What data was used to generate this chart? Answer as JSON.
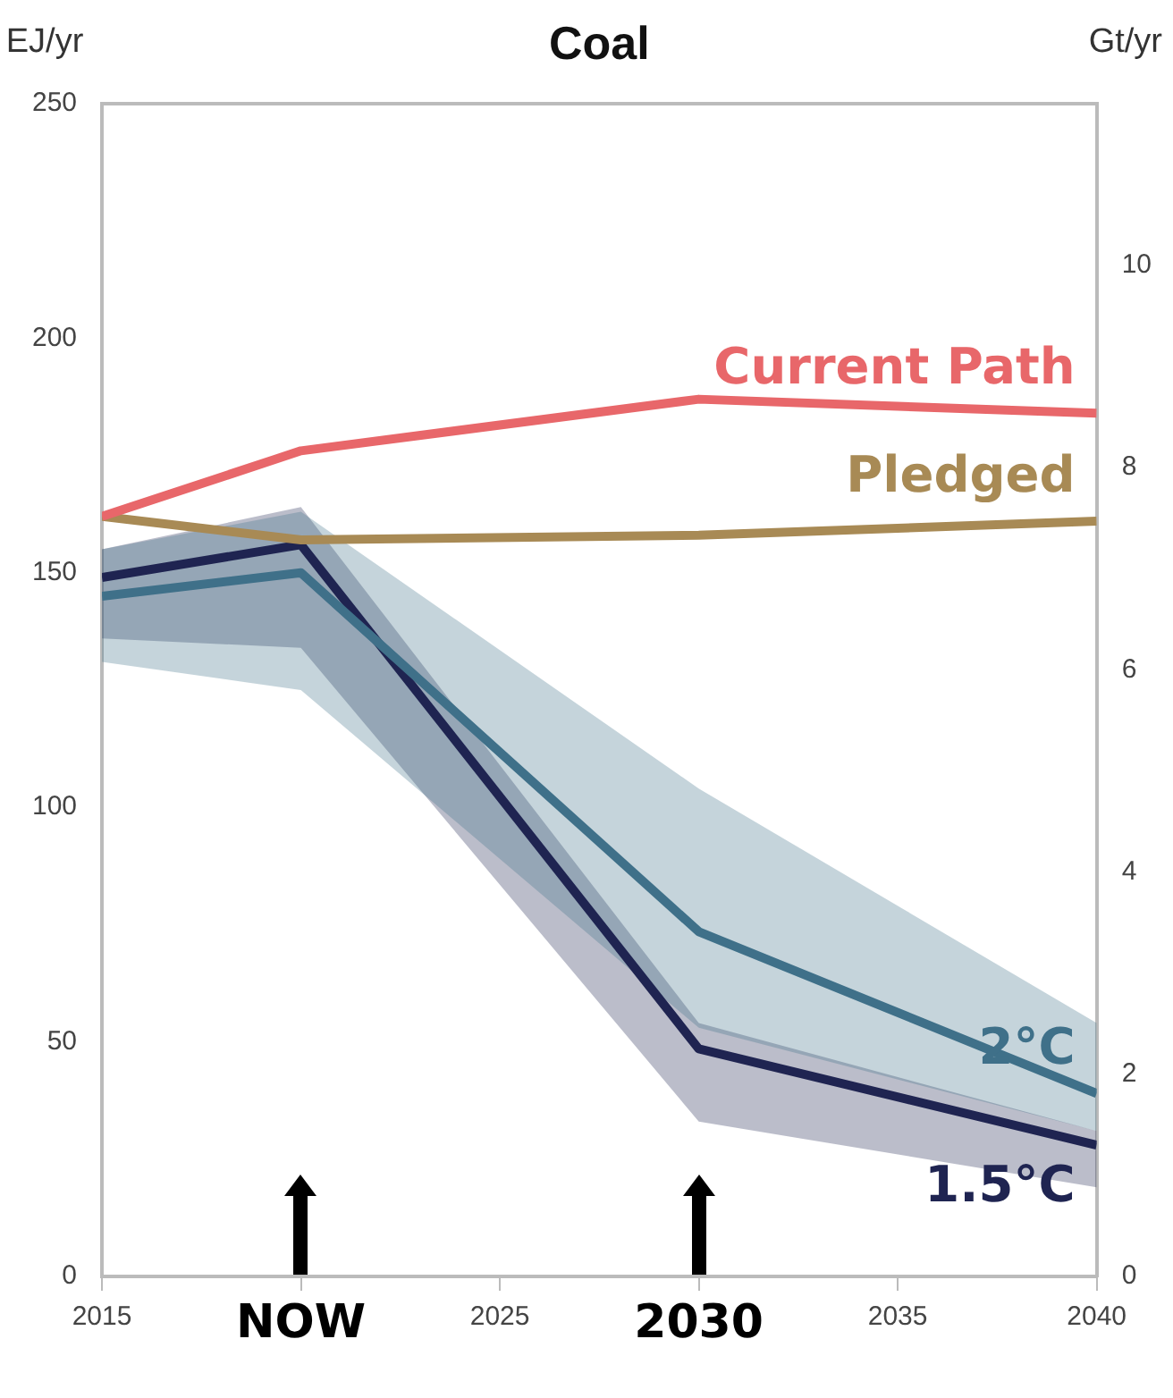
{
  "chart_data": {
    "type": "line",
    "title": "Coal",
    "ylabel": "EJ/yr",
    "y2label": "Gt/yr",
    "xlim": [
      2015,
      2040
    ],
    "xticks": [
      2015,
      {
        "value": 2020,
        "label": null
      },
      2025,
      {
        "value": 2030,
        "label": null
      },
      2035,
      2040
    ],
    "ylim": [
      0,
      250
    ],
    "yticks": [
      0,
      50,
      100,
      150,
      200,
      250
    ],
    "y2lim": [
      0,
      11.6
    ],
    "y2ticks": [
      0,
      2,
      4,
      6,
      8,
      10
    ],
    "grid": false,
    "legend": false,
    "marker": "none",
    "line_style": "solid",
    "series": [
      {
        "name": "Current Path",
        "color": "#e8676a",
        "x": [
          2015,
          2020,
          2030,
          2040
        ],
        "values": [
          162,
          176,
          187,
          184
        ]
      },
      {
        "name": "Pledged",
        "color": "#a88a55",
        "x": [
          2015,
          2020,
          2030,
          2040
        ],
        "values": [
          162,
          157,
          158,
          161
        ]
      },
      {
        "name": "2°C",
        "color": "#3f7089",
        "x": [
          2015,
          2020,
          2030,
          2040
        ],
        "values": [
          145,
          150,
          73.5,
          39
        ],
        "lower": [
          131,
          125,
          53,
          31
        ],
        "upper": [
          155,
          163,
          104,
          54
        ]
      },
      {
        "name": "1.5°C",
        "color": "#1f2451",
        "x": [
          2015,
          2020,
          2030,
          2040
        ],
        "values": [
          149,
          156,
          48.5,
          28
        ],
        "lower": [
          136,
          134,
          33,
          19
        ],
        "upper": [
          155,
          164,
          54,
          31
        ]
      }
    ],
    "annotations": [
      "NOW",
      "2030"
    ]
  }
}
